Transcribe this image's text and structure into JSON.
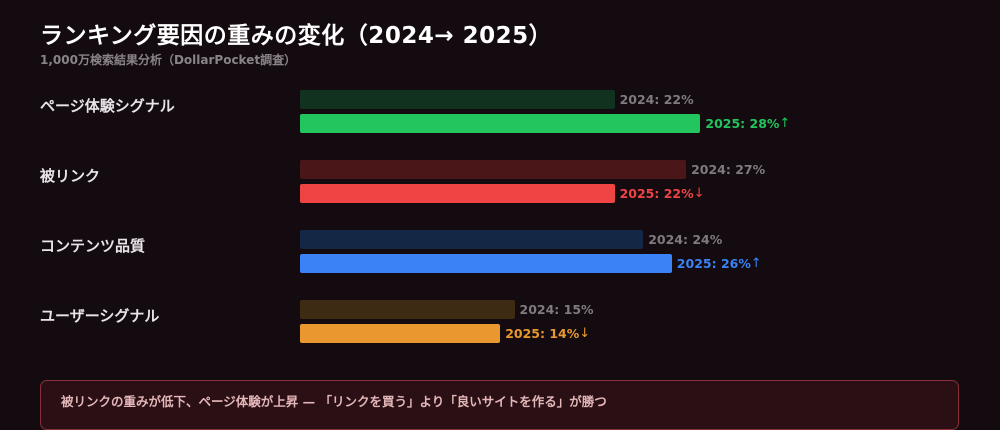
{
  "title": "ランキング要因の重みの変化（2024→ 2025）",
  "subtitle": "1,000万検索結果分析（DollarPocket調査）",
  "chart_data": {
    "type": "bar",
    "orientation": "horizontal",
    "grid": false,
    "categories": [
      "ページ体験シグナル",
      "被リンク",
      "コンテンツ品質",
      "ユーザーシグナル"
    ],
    "series": [
      {
        "name": "2024",
        "values": [
          22,
          27,
          24,
          15
        ]
      },
      {
        "name": "2025",
        "values": [
          28,
          22,
          26,
          14
        ]
      }
    ],
    "labels_2024": [
      "2024: 22%",
      "2024: 27%",
      "2024: 24%",
      "2024: 15%"
    ],
    "labels_2025": [
      "2025: 28%",
      "2025: 22%",
      "2025: 26%",
      "2025: 14%"
    ],
    "trend": [
      "↑",
      "↓",
      "↑",
      "↓"
    ],
    "colors_2025": [
      "#22c55e",
      "#ef4444",
      "#3b82f6",
      "#e8982f"
    ],
    "colors_2024": [
      "#11321f",
      "#4a1618",
      "#142745",
      "#3d2b14"
    ]
  },
  "footer_note": "被リンクの重みが低下、ページ体験が上昇 — 「リンクを買う」より「良いサイトを作る」が勝つ"
}
